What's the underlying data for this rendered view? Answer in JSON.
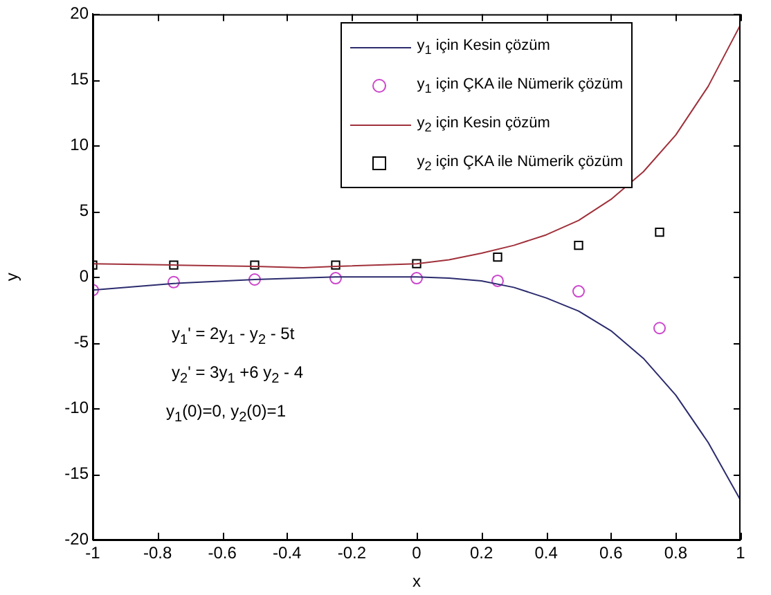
{
  "chart_data": {
    "type": "line",
    "xlabel": "x",
    "ylabel": "y",
    "xlim": [
      -1,
      1
    ],
    "ylim": [
      -20,
      20
    ],
    "xticks": [
      -1,
      -0.8,
      -0.6,
      -0.4,
      -0.2,
      0,
      0.2,
      0.4,
      0.6,
      0.8,
      1
    ],
    "yticks": [
      -20,
      -15,
      -10,
      -5,
      0,
      5,
      10,
      15,
      20
    ],
    "grid": false,
    "legend": "top right",
    "annotations": [
      "y$_{1}$' = 2y$_{1}$ - y$_{2}$ - 5t",
      "y$_{2}$' = 3y$_{1}$ +6 y$_{2}$ - 4",
      "y$_{1}$(0)=0, y$_{2}$(0)=1"
    ],
    "series": [
      {
        "name": "y$_{1}$ için Kesin çözüm",
        "color": "#2b2b6e",
        "marker": "none",
        "x": [
          -1,
          -0.75,
          -0.5,
          -0.25,
          0,
          0.1,
          0.2,
          0.3,
          0.4,
          0.5,
          0.6,
          0.7,
          0.8,
          0.9,
          1
        ],
        "values": [
          -1,
          -0.5,
          -0.2,
          0,
          0,
          -0.1,
          -0.3,
          -0.8,
          -1.6,
          -2.6,
          -4.1,
          -6.2,
          -9,
          -12.6,
          -17
        ]
      },
      {
        "name": "y$_{1}$ için ÇKA ile Nümerik çözüm",
        "type": "scatter",
        "color": "#cc44cc",
        "marker": "circle",
        "x": [
          -1,
          -0.75,
          -0.5,
          -0.25,
          0,
          0.25,
          0.5,
          0.75
        ],
        "values": [
          -1,
          -0.4,
          -0.2,
          -0.1,
          -0.1,
          -0.3,
          -1.1,
          -3.9
        ]
      },
      {
        "name": "y$_{2}$ için Kesin çözüm",
        "color": "#a0303a",
        "marker": "none",
        "x": [
          -1,
          -0.75,
          -0.5,
          -0.35,
          -0.25,
          0,
          0.1,
          0.2,
          0.3,
          0.4,
          0.5,
          0.6,
          0.7,
          0.8,
          0.9,
          1
        ],
        "values": [
          1,
          0.9,
          0.8,
          0.7,
          0.8,
          1,
          1.3,
          1.8,
          2.4,
          3.2,
          4.3,
          5.9,
          8,
          10.8,
          14.5,
          19.2
        ]
      },
      {
        "name": "y$_{2}$ için ÇKA ile Nümerik çözüm",
        "type": "scatter",
        "color": "#000000",
        "marker": "square",
        "x": [
          -1,
          -0.75,
          -0.5,
          -0.25,
          0,
          0.25,
          0.5,
          0.75
        ],
        "values": [
          0.9,
          0.9,
          0.9,
          0.9,
          1,
          1.5,
          2.4,
          3.4
        ]
      }
    ]
  }
}
